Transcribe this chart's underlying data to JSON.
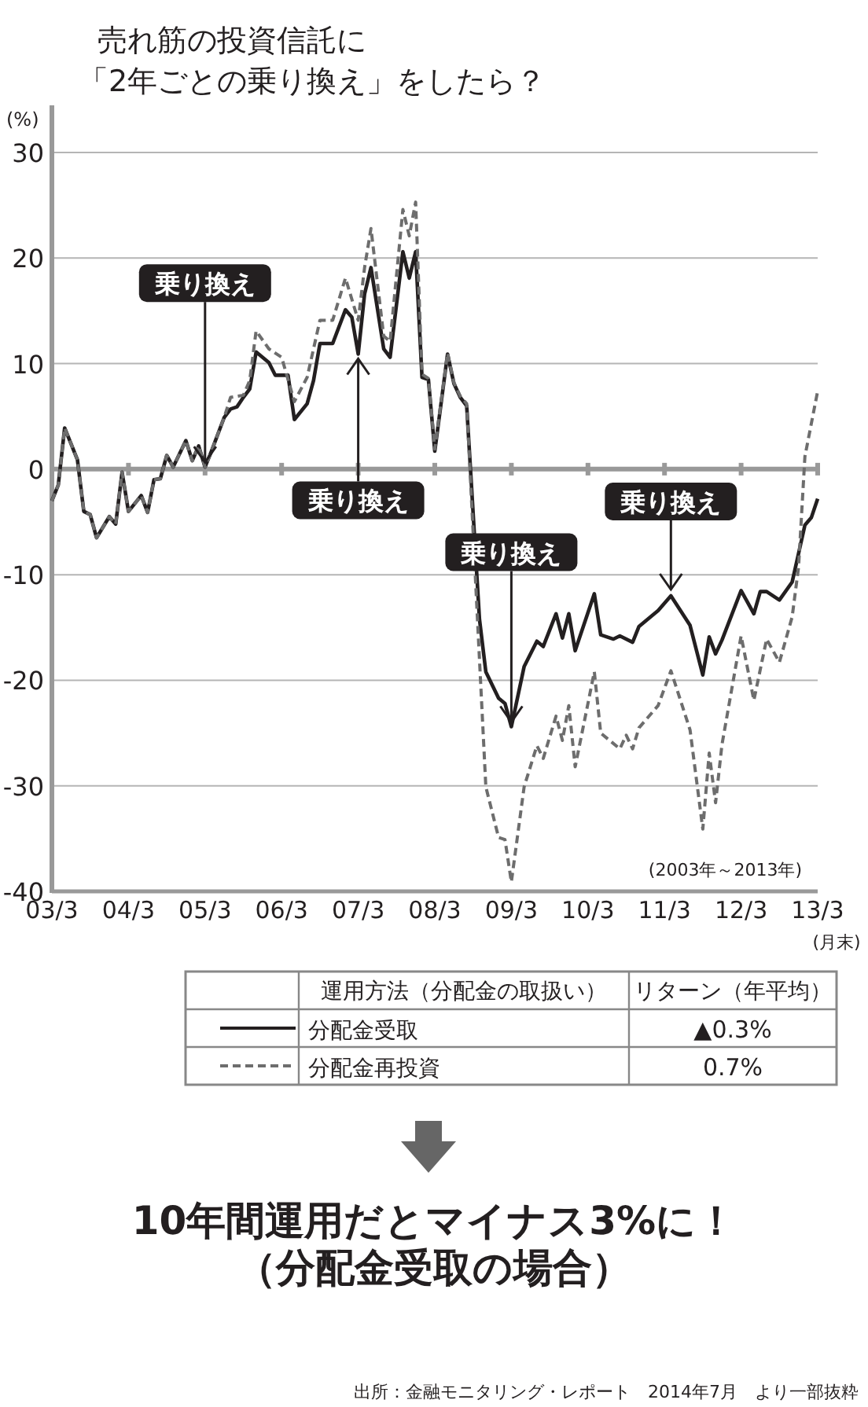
{
  "chart_data": {
    "type": "line",
    "title": "売れ筋の投資信託に",
    "subtitle": "「2年ごとの乗り換え」をしたら？",
    "ylabel": "(%)",
    "xlabel": "(月末)",
    "xlim": [
      "2003-03",
      "2013-03"
    ],
    "xticks": [
      {
        "value": "2003-03",
        "label": "03/3"
      },
      {
        "value": "2004-03",
        "label": "04/3"
      },
      {
        "value": "2005-03",
        "label": "05/3"
      },
      {
        "value": "2006-03",
        "label": "06/3"
      },
      {
        "value": "2007-03",
        "label": "07/3"
      },
      {
        "value": "2008-03",
        "label": "08/3"
      },
      {
        "value": "2009-03",
        "label": "09/3"
      },
      {
        "value": "2010-03",
        "label": "10/3"
      },
      {
        "value": "2011-03",
        "label": "11/3"
      },
      {
        "value": "2012-03",
        "label": "12/3"
      },
      {
        "value": "2013-03",
        "label": "13/3"
      }
    ],
    "ylim": [
      -40,
      30
    ],
    "yticks": [
      30,
      20,
      10,
      0,
      -10,
      -20,
      -30,
      -40
    ],
    "grid": "y",
    "legend": "bottom",
    "series": [
      {
        "name": "分配金受取",
        "color": "#231f20",
        "line_style": "solid",
        "x": [
          "2003-03",
          "2003-04",
          "2003-05",
          "2003-07",
          "2003-08",
          "2003-09",
          "2003-10",
          "2003-12",
          "2004-01",
          "2004-02",
          "2004-03",
          "2004-05",
          "2004-06",
          "2004-07",
          "2004-08",
          "2004-09",
          "2004-10",
          "2004-12",
          "2005-01",
          "2005-02",
          "2005-03",
          "2005-04",
          "2005-06",
          "2005-07",
          "2005-08",
          "2005-09",
          "2005-10",
          "2005-11",
          "2006-01",
          "2006-02",
          "2006-04",
          "2006-05",
          "2006-07",
          "2006-08",
          "2006-09",
          "2006-11",
          "2007-01",
          "2007-02",
          "2007-03",
          "2007-04",
          "2007-05",
          "2007-07",
          "2007-08",
          "2007-10",
          "2007-11",
          "2007-12",
          "2008-01",
          "2008-02",
          "2008-03",
          "2008-05",
          "2008-06",
          "2008-07",
          "2008-08",
          "2008-10",
          "2008-11",
          "2009-01",
          "2009-02",
          "2009-03",
          "2009-05",
          "2009-07",
          "2009-08",
          "2009-10",
          "2009-11",
          "2009-12",
          "2010-01",
          "2010-04",
          "2010-05",
          "2010-07",
          "2010-08",
          "2010-10",
          "2010-11",
          "2011-02",
          "2011-04",
          "2011-07",
          "2011-09",
          "2011-10",
          "2011-11",
          "2011-12",
          "2012-03",
          "2012-05",
          "2012-06",
          "2012-07",
          "2012-09",
          "2012-11",
          "2013-01",
          "2013-02",
          "2013-03"
        ],
        "values": [
          -3.0,
          -1.5,
          3.9,
          0.9,
          -4.0,
          -4.3,
          -6.5,
          -4.5,
          -5.2,
          -0.3,
          -4.0,
          -2.5,
          -4.1,
          -1.0,
          -0.9,
          1.3,
          0.2,
          2.7,
          0.8,
          2.2,
          0.2,
          1.7,
          4.9,
          5.7,
          5.9,
          6.8,
          7.6,
          11.1,
          10.1,
          8.9,
          8.9,
          4.7,
          6.2,
          8.4,
          11.9,
          11.9,
          15.1,
          14.4,
          10.9,
          16.6,
          19.1,
          11.4,
          10.6,
          20.6,
          18.1,
          20.6,
          8.7,
          8.5,
          1.7,
          10.9,
          8.1,
          6.8,
          6.0,
          -14.2,
          -19.2,
          -21.7,
          -22.2,
          -24.4,
          -18.7,
          -16.3,
          -16.8,
          -13.7,
          -16.0,
          -13.7,
          -17.2,
          -11.8,
          -15.7,
          -16.1,
          -15.8,
          -16.4,
          -14.9,
          -13.4,
          -12.0,
          -14.8,
          -19.5,
          -15.9,
          -17.5,
          -16.2,
          -11.5,
          -13.7,
          -11.6,
          -11.6,
          -12.4,
          -10.7,
          -5.3,
          -4.6,
          -2.8
        ]
      },
      {
        "name": "分配金再投資",
        "color": "#6d6d6d",
        "line_style": "dashed",
        "x": [
          "2003-03",
          "2003-04",
          "2003-05",
          "2003-07",
          "2003-08",
          "2003-09",
          "2003-10",
          "2003-12",
          "2004-01",
          "2004-02",
          "2004-03",
          "2004-05",
          "2004-06",
          "2004-07",
          "2004-08",
          "2004-09",
          "2004-10",
          "2004-12",
          "2005-01",
          "2005-02",
          "2005-03",
          "2005-04",
          "2005-06",
          "2005-07",
          "2005-09",
          "2005-10",
          "2005-11",
          "2006-01",
          "2006-03",
          "2006-05",
          "2006-07",
          "2006-09",
          "2006-11",
          "2007-01",
          "2007-03",
          "2007-04",
          "2007-05",
          "2007-07",
          "2007-08",
          "2007-10",
          "2007-11",
          "2007-12",
          "2008-01",
          "2008-02",
          "2008-03",
          "2008-05",
          "2008-06",
          "2008-07",
          "2008-08",
          "2008-11",
          "2009-01",
          "2009-02",
          "2009-03",
          "2009-05",
          "2009-07",
          "2009-08",
          "2009-10",
          "2009-11",
          "2009-12",
          "2010-01",
          "2010-04",
          "2010-05",
          "2010-08",
          "2010-09",
          "2010-10",
          "2010-11",
          "2011-02",
          "2011-04",
          "2011-07",
          "2011-09",
          "2011-10",
          "2011-11",
          "2011-12",
          "2012-03",
          "2012-05",
          "2012-07",
          "2012-09",
          "2012-11",
          "2012-12",
          "2013-01",
          "2013-03"
        ],
        "values": [
          -3.0,
          -1.5,
          3.9,
          0.9,
          -4.0,
          -4.3,
          -6.5,
          -4.5,
          -5.2,
          -0.3,
          -4.0,
          -2.5,
          -4.1,
          -1.0,
          -0.9,
          1.3,
          0.2,
          2.7,
          0.8,
          2.2,
          0.2,
          1.7,
          4.9,
          6.8,
          7.0,
          8.4,
          13.1,
          11.4,
          10.6,
          6.4,
          8.7,
          14.1,
          14.1,
          18.1,
          14.1,
          19.1,
          22.8,
          12.6,
          12.1,
          24.6,
          22.1,
          25.3,
          9.0,
          8.6,
          1.9,
          11.0,
          8.2,
          6.9,
          6.2,
          -30.1,
          -34.9,
          -35.1,
          -39.1,
          -30.1,
          -26.2,
          -27.4,
          -23.4,
          -25.7,
          -22.4,
          -28.2,
          -19.2,
          -25.0,
          -26.5,
          -25.2,
          -26.5,
          -24.5,
          -22.4,
          -19.1,
          -24.7,
          -34.1,
          -26.9,
          -31.6,
          -26.1,
          -15.8,
          -21.9,
          -16.1,
          -18.3,
          -14.0,
          -9.3,
          1.2,
          7.4
        ]
      }
    ],
    "annotations": [
      {
        "text": "乗り換え",
        "x": "2005-03",
        "y": 0.2
      },
      {
        "text": "乗り換え",
        "x": "2007-03",
        "y": 10.9
      },
      {
        "text": "乗り換え",
        "x": "2009-03",
        "y": -24.4
      },
      {
        "text": "乗り換え",
        "x": "2011-04",
        "y": -12.0
      },
      "(2003年～2013年)",
      "運用方法（分配金の取扱い）",
      "リターン（年平均）",
      "▲0.3%",
      "0.7%",
      "10年間運用だとマイナス3%に！",
      "（分配金受取の場合）",
      "出所：金融モニタリング・レポート　2014年7月　より一部抜粋"
    ]
  }
}
